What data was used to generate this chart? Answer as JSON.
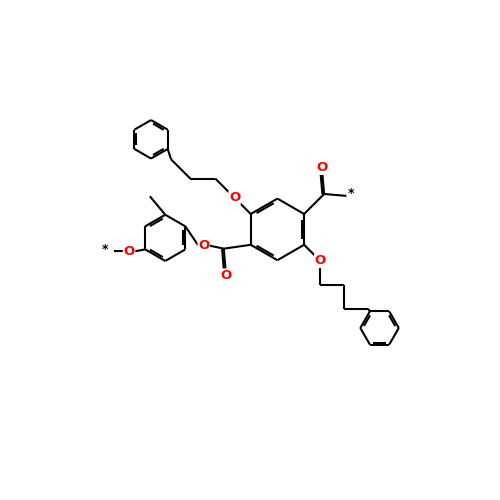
{
  "bg_color": "#ffffff",
  "bond_color": "#000000",
  "oxygen_color": "#ff0000",
  "lw": 1.5,
  "figsize": [
    5.0,
    5.0
  ],
  "dpi": 100,
  "xlim": [
    -1.0,
    9.0
  ],
  "ylim": [
    -1.0,
    9.0
  ]
}
